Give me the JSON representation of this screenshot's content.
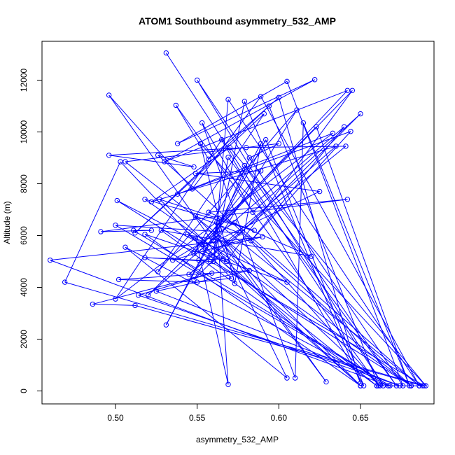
{
  "chart_data": {
    "type": "line",
    "title": "ATOM1 Southbound asymmetry_532_AMP",
    "xlabel": "asymmetry_532_AMP",
    "ylabel": "Altitude (m)",
    "xlim": [
      0.455,
      0.695
    ],
    "ylim": [
      -500,
      13500
    ],
    "x_ticks": [
      0.5,
      0.55,
      0.6,
      0.65
    ],
    "x_tick_labels": [
      "0.50",
      "0.55",
      "0.60",
      "0.65"
    ],
    "y_ticks": [
      0,
      2000,
      4000,
      6000,
      8000,
      10000,
      12000
    ],
    "y_tick_labels": [
      "0",
      "2000",
      "4000",
      "6000",
      "8000",
      "10000",
      "12000"
    ],
    "grid": false,
    "line_color": "#0000ff",
    "marker": "open-circle",
    "series": [
      {
        "points": [
          [
            0.531,
            13050
          ],
          [
            0.664,
            200
          ],
          [
            0.55,
            12000
          ],
          [
            0.676,
            200
          ],
          [
            0.605,
            11950
          ],
          [
            0.538,
            9550
          ],
          [
            0.622,
            12020
          ],
          [
            0.53,
            8850
          ],
          [
            0.642,
            11600
          ],
          [
            0.553,
            5650
          ],
          [
            0.645,
            11600
          ],
          [
            0.568,
            5000
          ],
          [
            0.496,
            11420
          ],
          [
            0.547,
            7800
          ],
          [
            0.589,
            11370
          ],
          [
            0.686,
            200
          ],
          [
            0.569,
            11250
          ],
          [
            0.56,
            5000
          ],
          [
            0.579,
            11180
          ],
          [
            0.65,
            300
          ],
          [
            0.6,
            11330
          ],
          [
            0.557,
            8950
          ],
          [
            0.537,
            11030
          ],
          [
            0.661,
            200
          ],
          [
            0.594,
            11000
          ],
          [
            0.512,
            6100
          ],
          [
            0.591,
            10700
          ],
          [
            0.526,
            4600
          ],
          [
            0.611,
            10850
          ],
          [
            0.548,
            4300
          ],
          [
            0.65,
            10700
          ],
          [
            0.584,
            6900
          ],
          [
            0.553,
            10350
          ],
          [
            0.61,
            500
          ],
          [
            0.615,
            10350
          ],
          [
            0.68,
            200
          ],
          [
            0.623,
            10200
          ],
          [
            0.52,
            3700
          ],
          [
            0.64,
            10200
          ],
          [
            0.583,
            5800
          ],
          [
            0.644,
            10020
          ],
          [
            0.538,
            7600
          ],
          [
            0.633,
            9950
          ],
          [
            0.5,
            3550
          ],
          [
            0.565,
            9700
          ],
          [
            0.652,
            200
          ],
          [
            0.592,
            9700
          ],
          [
            0.531,
            2550
          ],
          [
            0.589,
            9550
          ],
          [
            0.573,
            4150
          ],
          [
            0.552,
            9550
          ],
          [
            0.69,
            200
          ],
          [
            0.57,
            9400
          ],
          [
            0.522,
            7300
          ],
          [
            0.635,
            9450
          ],
          [
            0.545,
            4500
          ],
          [
            0.641,
            9450
          ],
          [
            0.58,
            9400
          ],
          [
            0.496,
            9100
          ],
          [
            0.548,
            8650
          ],
          [
            0.526,
            9100
          ],
          [
            0.681,
            200
          ],
          [
            0.506,
            8850
          ],
          [
            0.6,
            9550
          ],
          [
            0.582,
            9000
          ],
          [
            0.56,
            5800
          ],
          [
            0.569,
            9020
          ],
          [
            0.672,
            200
          ],
          [
            0.579,
            8700
          ],
          [
            0.548,
            5300
          ],
          [
            0.589,
            8500
          ],
          [
            0.549,
            8400
          ],
          [
            0.625,
            7700
          ],
          [
            0.555,
            5600
          ],
          [
            0.501,
            7350
          ],
          [
            0.681,
            200
          ],
          [
            0.518,
            7400
          ],
          [
            0.585,
            6200
          ],
          [
            0.527,
            7400
          ],
          [
            0.65,
            200
          ],
          [
            0.549,
            6750
          ],
          [
            0.576,
            6100
          ],
          [
            0.5,
            6400
          ],
          [
            0.668,
            200
          ],
          [
            0.511,
            6200
          ],
          [
            0.522,
            6200
          ],
          [
            0.491,
            6150
          ],
          [
            0.642,
            7400
          ],
          [
            0.557,
            6900
          ],
          [
            0.62,
            5200
          ],
          [
            0.528,
            6200
          ],
          [
            0.66,
            200
          ],
          [
            0.544,
            6050
          ],
          [
            0.605,
            4200
          ],
          [
            0.518,
            6050
          ],
          [
            0.65,
            200
          ],
          [
            0.549,
            5900
          ],
          [
            0.569,
            250
          ],
          [
            0.562,
            6500
          ],
          [
            0.686,
            200
          ],
          [
            0.573,
            6500
          ],
          [
            0.535,
            5050
          ],
          [
            0.581,
            5900
          ],
          [
            0.662,
            200
          ],
          [
            0.567,
            5800
          ],
          [
            0.629,
            350
          ],
          [
            0.563,
            5900
          ],
          [
            0.605,
            500
          ],
          [
            0.506,
            5550
          ],
          [
            0.667,
            200
          ],
          [
            0.46,
            5050
          ],
          [
            0.59,
            5950
          ],
          [
            0.553,
            5400
          ],
          [
            0.566,
            5100
          ],
          [
            0.551,
            5050
          ],
          [
            0.518,
            5150
          ],
          [
            0.558,
            5000
          ],
          [
            0.689,
            200
          ],
          [
            0.469,
            4200
          ],
          [
            0.503,
            8850
          ],
          [
            0.571,
            4350
          ],
          [
            0.55,
            4200
          ],
          [
            0.502,
            4300
          ],
          [
            0.582,
            4650
          ],
          [
            0.525,
            3850
          ],
          [
            0.674,
            200
          ],
          [
            0.514,
            3700
          ],
          [
            0.559,
            4550
          ],
          [
            0.486,
            3350
          ],
          [
            0.512,
            3300
          ],
          [
            0.688,
            200
          ],
          [
            0.66,
            200
          ]
        ]
      }
    ]
  }
}
